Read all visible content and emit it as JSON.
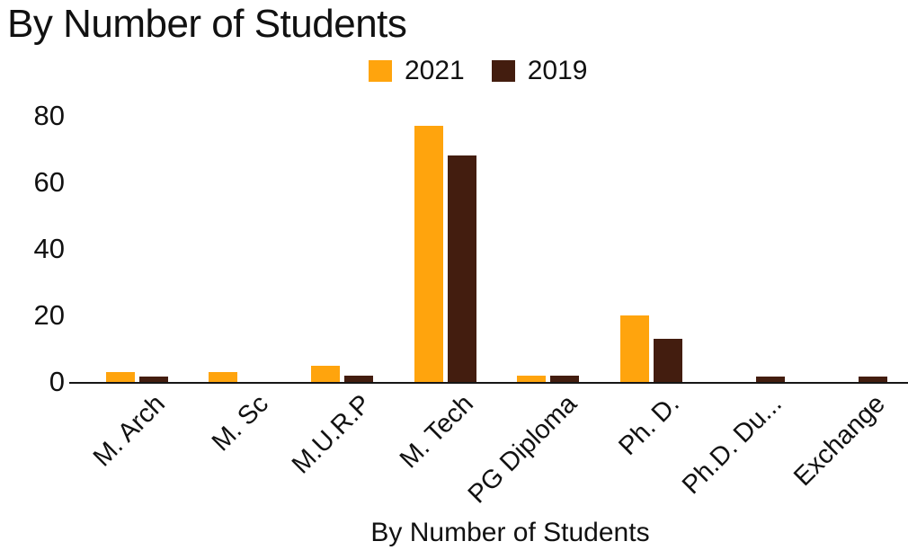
{
  "title": "By Number of Students",
  "chart_data": {
    "type": "bar",
    "title": "By Number of Students",
    "categories": [
      "M. Arch",
      "M. Sc",
      "M.U.R.P",
      "M. Tech",
      "PG Diploma",
      "Ph. D.",
      "Ph.D. Du...",
      "Exchange"
    ],
    "series": [
      {
        "name": "2021",
        "color": "#FFA40D",
        "values": [
          3,
          3,
          5,
          77,
          2,
          20,
          0,
          0
        ]
      },
      {
        "name": "2019",
        "color": "#431D0F",
        "values": [
          1.5,
          0,
          2,
          68,
          2,
          13,
          1.5,
          1.5
        ]
      }
    ],
    "xlabel": "By Number of Students",
    "ylabel": "",
    "yticks": [
      0,
      20,
      40,
      60,
      80
    ],
    "ylim": [
      0,
      80
    ],
    "grid": false,
    "legend_position": "top"
  },
  "colors": {
    "accent_orange": "#FFA40D",
    "accent_brown": "#431D0F",
    "text": "#111111",
    "background": "#FFFFFF",
    "axis_line": "#161616"
  }
}
